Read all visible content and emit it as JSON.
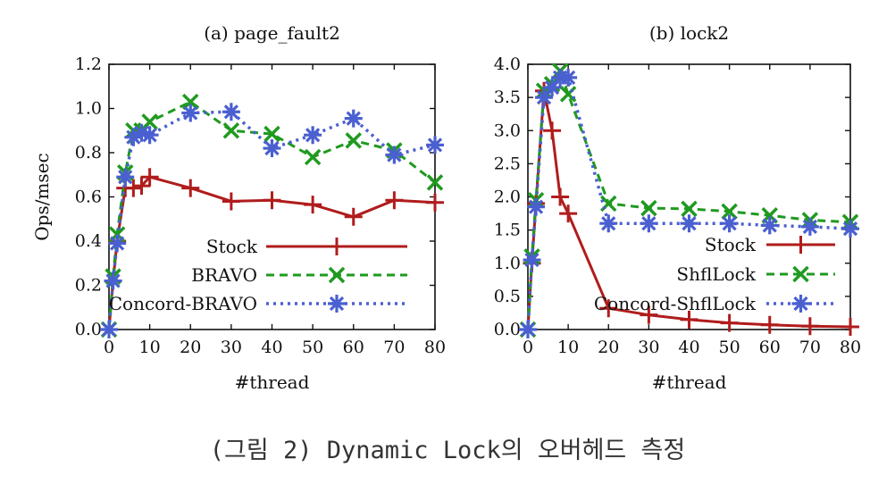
{
  "caption": "(그림 2) Dynamic Lock의 오버헤드 측정",
  "colors": {
    "stock": "#b01c1c",
    "green": "#1f9a1f",
    "blue": "#4a5fd0"
  },
  "chart_data": [
    {
      "type": "line",
      "title": "(a) page_fault2",
      "xlabel": "#thread",
      "ylabel": "Ops/msec",
      "xlim": [
        0,
        80
      ],
      "ylim": [
        0,
        1.2
      ],
      "xticks": [
        0,
        10,
        20,
        30,
        40,
        50,
        60,
        70,
        80
      ],
      "yticks": [
        0.0,
        0.2,
        0.4,
        0.6,
        0.8,
        1.0,
        1.2
      ],
      "ytick_labels": [
        "0.0",
        "0.2",
        "0.4",
        "0.6",
        "0.8",
        "1.0",
        "1.2"
      ],
      "legend_position": "bottom-right",
      "series": [
        {
          "name": "Stock",
          "style": "stock",
          "marker": "plus",
          "x": [
            0,
            1,
            2,
            4,
            6,
            8,
            10,
            20,
            30,
            40,
            50,
            60,
            70,
            80
          ],
          "y": [
            0.0,
            0.22,
            0.4,
            0.64,
            0.64,
            0.65,
            0.69,
            0.64,
            0.58,
            0.585,
            0.565,
            0.51,
            0.585,
            0.575
          ]
        },
        {
          "name": "BRAVO",
          "style": "green",
          "marker": "x",
          "x": [
            0,
            1,
            2,
            4,
            6,
            8,
            10,
            20,
            30,
            40,
            50,
            60,
            70,
            80
          ],
          "y": [
            0.0,
            0.24,
            0.43,
            0.71,
            0.9,
            0.9,
            0.94,
            1.03,
            0.9,
            0.885,
            0.78,
            0.855,
            0.81,
            0.665
          ]
        },
        {
          "name": "Concord-BRAVO",
          "style": "blue",
          "marker": "star",
          "x": [
            0,
            1,
            2,
            4,
            6,
            8,
            10,
            20,
            30,
            40,
            50,
            60,
            70,
            80
          ],
          "y": [
            0.0,
            0.22,
            0.39,
            0.69,
            0.87,
            0.89,
            0.88,
            0.98,
            0.985,
            0.82,
            0.88,
            0.955,
            0.79,
            0.835
          ]
        }
      ]
    },
    {
      "type": "line",
      "title": "(b) lock2",
      "xlabel": "#thread",
      "ylabel": "",
      "xlim": [
        0,
        80
      ],
      "ylim": [
        0,
        4.0
      ],
      "xticks": [
        0,
        10,
        20,
        30,
        40,
        50,
        60,
        70,
        80
      ],
      "yticks": [
        0.0,
        0.5,
        1.0,
        1.5,
        2.0,
        2.5,
        3.0,
        3.5,
        4.0
      ],
      "ytick_labels": [
        "0.0",
        "0.5",
        "1.0",
        "1.5",
        "2.0",
        "2.5",
        "3.0",
        "3.5",
        "4.0"
      ],
      "legend_position": "bottom-right",
      "series": [
        {
          "name": "Stock",
          "style": "stock",
          "marker": "plus",
          "x": [
            0,
            1,
            2,
            4,
            6,
            8,
            10,
            20,
            30,
            40,
            50,
            60,
            70,
            80
          ],
          "y": [
            0.0,
            1.0,
            1.9,
            3.6,
            3.0,
            2.0,
            1.75,
            0.32,
            0.22,
            0.15,
            0.1,
            0.07,
            0.05,
            0.04
          ]
        },
        {
          "name": "ShflLock",
          "style": "green",
          "marker": "x",
          "x": [
            0,
            1,
            2,
            4,
            6,
            8,
            10,
            20,
            30,
            40,
            50,
            60,
            70,
            80
          ],
          "y": [
            0.0,
            1.1,
            1.95,
            3.6,
            3.7,
            3.9,
            3.55,
            1.9,
            1.83,
            1.82,
            1.78,
            1.72,
            1.65,
            1.62
          ]
        },
        {
          "name": "Concord-ShflLock",
          "style": "blue",
          "marker": "star",
          "x": [
            0,
            1,
            2,
            4,
            6,
            8,
            10,
            20,
            30,
            40,
            50,
            60,
            70,
            80
          ],
          "y": [
            0.0,
            1.05,
            1.85,
            3.5,
            3.65,
            3.8,
            3.8,
            1.6,
            1.6,
            1.6,
            1.6,
            1.57,
            1.55,
            1.52
          ]
        }
      ]
    }
  ]
}
